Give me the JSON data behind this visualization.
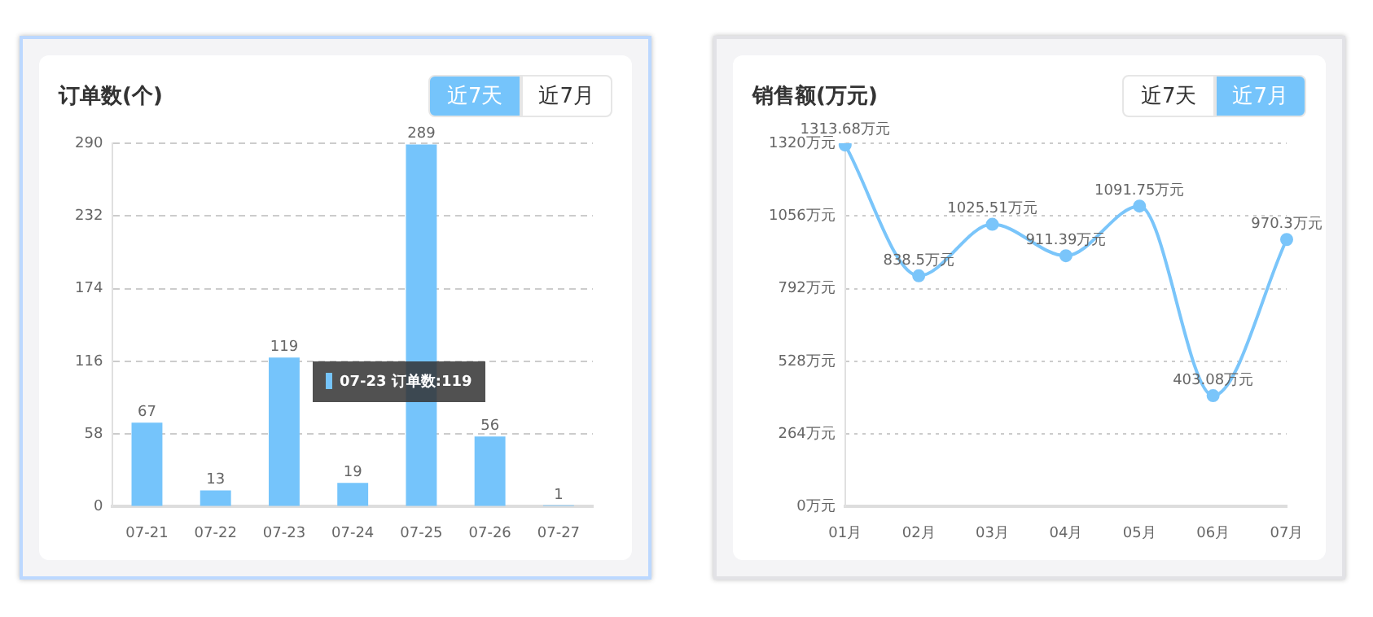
{
  "chart_data": [
    {
      "type": "bar",
      "title": "订单数(个)",
      "categories": [
        "07-21",
        "07-22",
        "07-23",
        "07-24",
        "07-25",
        "07-26",
        "07-27"
      ],
      "values": [
        67,
        13,
        119,
        19,
        289,
        56,
        1
      ],
      "color": "#75c4fb",
      "ylim": [
        0,
        290
      ],
      "yticks": [
        0,
        58,
        116,
        174,
        232,
        290
      ],
      "grid": "y",
      "data_labels": true,
      "legend": false,
      "annotations": [
        "近7天",
        "近7月",
        "07-23 订单数:119"
      ]
    },
    {
      "type": "line",
      "title": "销售额(万元)",
      "categories": [
        "01月",
        "02月",
        "03月",
        "04月",
        "05月",
        "06月",
        "07月"
      ],
      "values": [
        1313.68,
        838.5,
        1025.51,
        911.39,
        1091.75,
        403.08,
        970.3
      ],
      "color": "#7ac5fa",
      "value_labels": [
        "1313.68万元",
        "838.5万元",
        "1025.51万元",
        "911.39万元",
        "1091.75万元",
        "403.08万元",
        "970.3万元"
      ],
      "ylim": [
        0,
        1320
      ],
      "yticks": [
        {
          "value": 0,
          "label": "0万元"
        },
        {
          "value": 264,
          "label": "264万元"
        },
        {
          "value": 528,
          "label": "528万元"
        },
        {
          "value": 792,
          "label": "792万元"
        },
        {
          "value": 1056,
          "label": "1056万元"
        },
        {
          "value": 1320,
          "label": "1320万元"
        }
      ],
      "grid": "y",
      "marker": "circle",
      "line_style": "solid",
      "legend": false,
      "annotations": [
        "近7天",
        "近7月"
      ]
    }
  ]
}
